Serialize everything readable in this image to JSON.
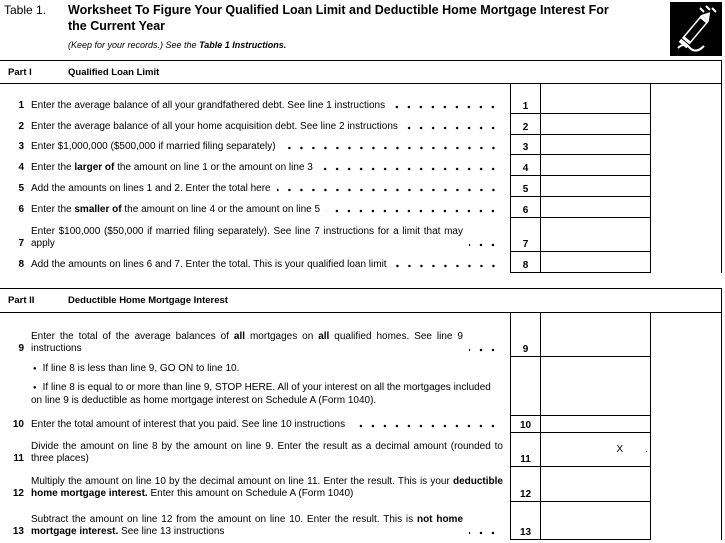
{
  "header": {
    "table_label": "Table 1.",
    "title": "Worksheet To Figure Your Qualified Loan Limit and Deductible Home Mortgage Interest For the Current Year",
    "note": [
      {
        "text": "(Keep for your records.) See the "
      },
      {
        "text": "Table 1 Instructions.",
        "bold": true
      }
    ]
  },
  "parts": [
    {
      "label": "Part I",
      "title": "Qualified Loan Limit",
      "lines": [
        {
          "num": "1",
          "dots": true,
          "segments": [
            {
              "text": "Enter the average balance of all your grandfathered debt. See line 1 instructions"
            }
          ]
        },
        {
          "num": "2",
          "dots": true,
          "segments": [
            {
              "text": "Enter the average balance of all your home acquisition debt. See line 2 instructions"
            }
          ]
        },
        {
          "num": "3",
          "dots": true,
          "segments": [
            {
              "text": "Enter $1,000,000 ($500,000 if married filing separately)"
            }
          ]
        },
        {
          "num": "4",
          "dots": true,
          "segments": [
            {
              "text": "Enter the "
            },
            {
              "text": "larger of",
              "bold": true
            },
            {
              "text": " the amount on line 1 or the amount on line 3"
            }
          ]
        },
        {
          "num": "5",
          "dots": true,
          "segments": [
            {
              "text": "Add the amounts on lines 1 and 2. Enter the total here"
            }
          ]
        },
        {
          "num": "6",
          "dots": true,
          "segments": [
            {
              "text": "Enter the "
            },
            {
              "text": "smaller of",
              "bold": true
            },
            {
              "text": " the amount on line 4 or the amount on line 5"
            }
          ]
        },
        {
          "num": "7",
          "dots": true,
          "segments": [
            {
              "text": "Enter $100,000 ($50,000 if married filing separately). See line 7 instructions for a limit that may apply"
            }
          ]
        },
        {
          "num": "8",
          "dots": true,
          "segments": [
            {
              "text": "Add the amounts on lines 6 and 7. Enter the total. This is your qualified loan limit"
            }
          ]
        }
      ]
    },
    {
      "label": "Part II",
      "title": "Deductible Home Mortgage Interest",
      "lines": [
        {
          "num": "9",
          "dots": true,
          "segments": [
            {
              "text": "Enter the total of the average balances of "
            },
            {
              "text": "all",
              "bold": true
            },
            {
              "text": " mortgages on "
            },
            {
              "text": "all",
              "bold": true
            },
            {
              "text": " qualified homes. See line 9 instructions"
            }
          ],
          "notes": [
            "If line 8 is less than line 9, GO ON to line 10.",
            "If line 8 is equal to or more than line 9, STOP HERE. All of your interest on all the mortgages included on line 9 is deductible as home mortgage interest on Schedule A (Form 1040)."
          ]
        },
        {
          "num": "10",
          "dots": true,
          "segments": [
            {
              "text": "Enter the total amount of interest that you paid. See line 10 instructions"
            }
          ]
        },
        {
          "num": "11",
          "dots": false,
          "segments": [
            {
              "text": "Divide the amount on line 8 by the amount on line 9. Enter the result as a decimal amount (rounded to three places)"
            }
          ],
          "entry": [
            "X",
            "."
          ]
        },
        {
          "num": "12",
          "dots": false,
          "segments": [
            {
              "text": "Multiply the amount on line 10 by the decimal amount on line 11. Enter the result. This is your "
            },
            {
              "text": "deductible home mortgage interest.",
              "bold": true
            },
            {
              "text": " Enter this amount on Schedule A (Form 1040)"
            }
          ]
        },
        {
          "num": "13",
          "dots": true,
          "segments": [
            {
              "text": "Subtract the amount on line 12 from the amount on line 10. Enter the result. This is "
            },
            {
              "text": "not home mortgage interest.",
              "bold": true
            },
            {
              "text": " See line 13 instructions"
            }
          ]
        }
      ]
    }
  ]
}
